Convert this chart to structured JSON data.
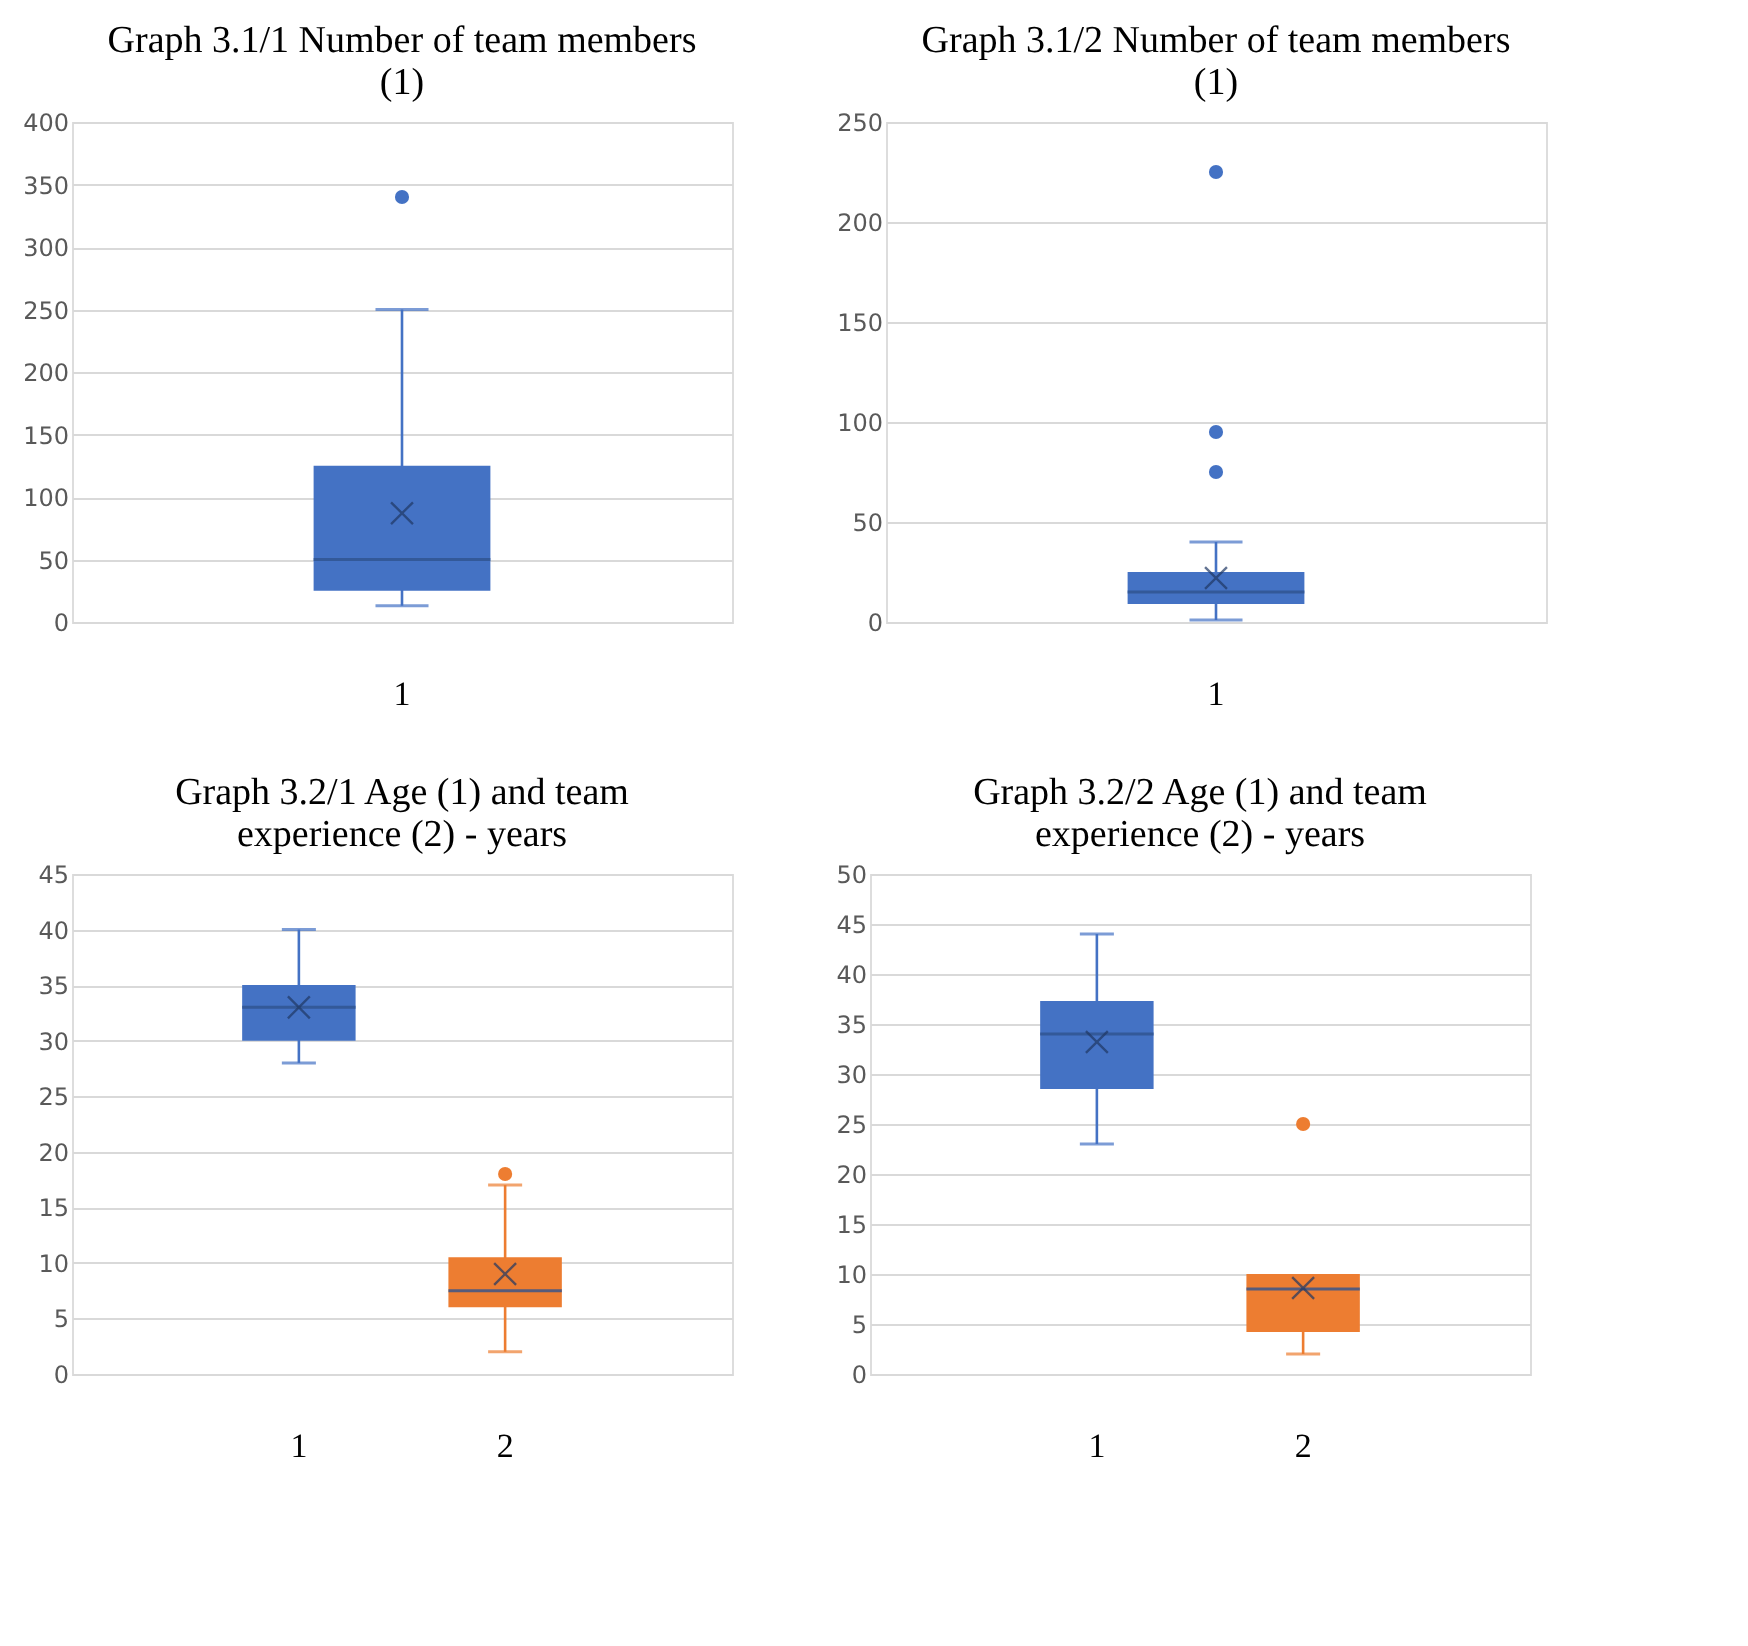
{
  "chart_data": [
    {
      "type": "box",
      "title": "Graph 3.1/1 Number of team members (1)",
      "categories": [
        "1"
      ],
      "colors": [
        "#4472c4"
      ],
      "ylim": [
        0,
        400
      ],
      "yticks": [
        0,
        50,
        100,
        150,
        200,
        250,
        300,
        350,
        400
      ],
      "grid": "y",
      "boxes": [
        {
          "low": 13,
          "q1": 25,
          "median": 50,
          "q3": 125,
          "high": 250,
          "mean": 87,
          "outliers": [
            340
          ]
        }
      ]
    },
    {
      "type": "box",
      "title": "Graph 3.1/2 Number of team members (1)",
      "categories": [
        "1"
      ],
      "colors": [
        "#4472c4"
      ],
      "ylim": [
        0,
        250
      ],
      "yticks": [
        0,
        50,
        100,
        150,
        200,
        250
      ],
      "grid": "y",
      "boxes": [
        {
          "low": 1,
          "q1": 9,
          "median": 15,
          "q3": 25,
          "high": 40,
          "mean": 22,
          "outliers": [
            75,
            95,
            225
          ]
        }
      ]
    },
    {
      "type": "box",
      "title": "Graph 3.2/1 Age (1) and team experience (2) - years",
      "categories": [
        "1",
        "2"
      ],
      "colors": [
        "#4472c4",
        "#ed7d31"
      ],
      "ylim": [
        0,
        45
      ],
      "yticks": [
        0,
        5,
        10,
        15,
        20,
        25,
        30,
        35,
        40,
        45
      ],
      "grid": "y",
      "boxes": [
        {
          "low": 28,
          "q1": 30,
          "median": 33,
          "q3": 35,
          "high": 40,
          "mean": 33
        },
        {
          "low": 2,
          "q1": 6,
          "median": 7.5,
          "q3": 10.5,
          "high": 17,
          "mean": 9,
          "outliers": [
            18
          ]
        }
      ]
    },
    {
      "type": "box",
      "title": "Graph 3.2/2 Age (1) and team experience (2) - years",
      "categories": [
        "1",
        "2"
      ],
      "colors": [
        "#4472c4",
        "#ed7d31"
      ],
      "ylim": [
        0,
        50
      ],
      "yticks": [
        0,
        5,
        10,
        15,
        20,
        25,
        30,
        35,
        40,
        45,
        50
      ],
      "grid": "y",
      "boxes": [
        {
          "low": 23,
          "q1": 28.5,
          "median": 34,
          "q3": 37.3,
          "high": 44,
          "mean": 33.2
        },
        {
          "low": 2,
          "q1": 4.2,
          "median": 8.5,
          "q3": 10,
          "high": 10,
          "mean": 8.6,
          "outliers": [
            25
          ]
        }
      ]
    }
  ]
}
